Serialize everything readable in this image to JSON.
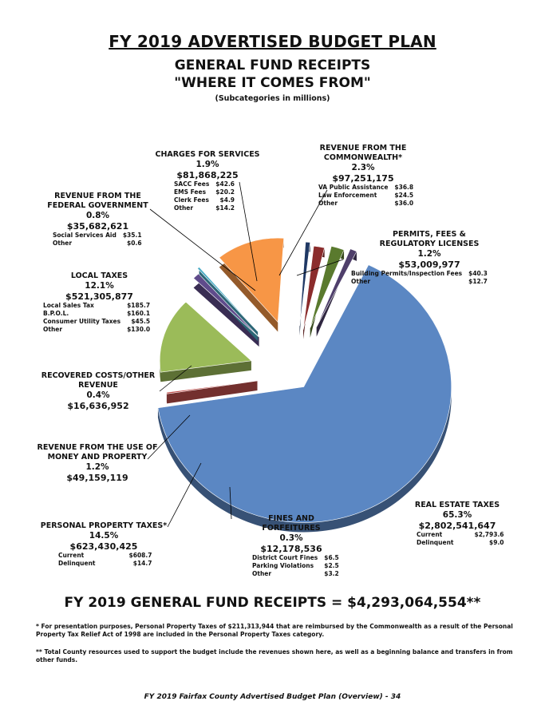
{
  "header": {
    "title": "FY 2019 ADVERTISED BUDGET PLAN",
    "subtitle1": "GENERAL FUND RECEIPTS",
    "subtitle2": "\"WHERE IT COMES FROM\"",
    "note": "(Subcategories in millions)"
  },
  "chart_data": {
    "type": "pie",
    "title": "FY 2019 ADVERTISED BUDGET PLAN",
    "slices": [
      {
        "name": "REAL ESTATE TAXES",
        "pct": 65.3,
        "pct_label": "65.3%",
        "amount": "$2,802,541,647",
        "color": "#5b87c3",
        "subs": [
          [
            "Current",
            "$2,793.6"
          ],
          [
            "Delinquent",
            "$9.0"
          ]
        ]
      },
      {
        "name": "FINES AND FORFEITURES",
        "pct": 0.3,
        "pct_label": "0.3%",
        "amount": "$12,178,536",
        "color": "#c0504d",
        "subs": [
          [
            "District Court Fines",
            "$6.5"
          ],
          [
            "Parking Violations",
            "$2.5"
          ],
          [
            "Other",
            "$3.2"
          ]
        ]
      },
      {
        "name": "PERSONAL PROPERTY TAXES*",
        "pct": 14.5,
        "pct_label": "14.5%",
        "amount": "$623,430,425",
        "color": "#9bbb59",
        "subs": [
          [
            "Current",
            "$608.7"
          ],
          [
            "Delinquent",
            "$14.7"
          ]
        ]
      },
      {
        "name": "REVENUE FROM THE USE OF MONEY AND PROPERTY",
        "pct": 1.2,
        "pct_label": "1.2%",
        "amount": "$49,159,119",
        "color": "#5f4b8b",
        "subs": []
      },
      {
        "name": "RECOVERED COSTS/OTHER REVENUE",
        "pct": 0.4,
        "pct_label": "0.4%",
        "amount": "$16,636,952",
        "color": "#4bacc6",
        "subs": []
      },
      {
        "name": "LOCAL TAXES",
        "pct": 12.1,
        "pct_label": "12.1%",
        "amount": "$521,305,877",
        "color": "#f79646",
        "subs": [
          [
            "Local Sales Tax",
            "$185.7"
          ],
          [
            "B.P.O.L.",
            "$160.1"
          ],
          [
            "Consumer Utility Taxes",
            "$45.5"
          ],
          [
            "Other",
            "$130.0"
          ]
        ]
      },
      {
        "name": "REVENUE FROM THE FEDERAL GOVERNMENT",
        "pct": 0.8,
        "pct_label": "0.8%",
        "amount": "$35,682,621",
        "color": "#1f3864",
        "subs": [
          [
            "Social Services Aid",
            "$35.1"
          ],
          [
            "Other",
            "$0.6"
          ]
        ]
      },
      {
        "name": "CHARGES FOR SERVICES",
        "pct": 1.9,
        "pct_label": "1.9%",
        "amount": "$81,868,225",
        "color": "#8b2c2c",
        "subs": [
          [
            "SACC Fees",
            "$42.6"
          ],
          [
            "EMS Fees",
            "$20.2"
          ],
          [
            "Clerk Fees",
            "$4.9"
          ],
          [
            "Other",
            "$14.2"
          ]
        ]
      },
      {
        "name": "REVENUE FROM THE COMMONWEALTH*",
        "pct": 2.3,
        "pct_label": "2.3%",
        "amount": "$97,251,175",
        "color": "#5a7a2e",
        "subs": [
          [
            "VA Public Assistance",
            "$36.8"
          ],
          [
            "Law Enforcement",
            "$24.5"
          ],
          [
            "Other",
            "$36.0"
          ]
        ]
      },
      {
        "name": "PERMITS, FEES & REGULATORY LICENSES",
        "pct": 1.2,
        "pct_label": "1.2%",
        "amount": "$53,009,977",
        "color": "#4f3f6b",
        "subs": [
          [
            "Building Permits/Inspection Fees",
            "$40.3"
          ],
          [
            "Other",
            "$12.7"
          ]
        ]
      }
    ]
  },
  "labels": {
    "real_estate": {
      "l1": "REAL ESTATE TAXES"
    },
    "fines": {
      "l1": "FINES AND FORFEITURES"
    },
    "personal": {
      "l1": "PERSONAL PROPERTY TAXES*"
    },
    "money": {
      "l1": "REVENUE FROM THE USE OF",
      "l2": "MONEY AND PROPERTY"
    },
    "recovered": {
      "l1": "RECOVERED COSTS/OTHER",
      "l2": "REVENUE"
    },
    "local": {
      "l1": "LOCAL TAXES"
    },
    "federal": {
      "l1": "REVENUE FROM THE",
      "l2": "FEDERAL GOVERNMENT"
    },
    "charges": {
      "l1": "CHARGES FOR SERVICES"
    },
    "commonwealth": {
      "l1": "REVENUE FROM THE",
      "l2": "COMMONWEALTH*"
    },
    "permits": {
      "l1": "PERMITS, FEES &",
      "l2": "REGULATORY LICENSES"
    }
  },
  "total": "FY 2019 GENERAL FUND RECEIPTS = $4,293,064,554**",
  "footnotes": {
    "f1": "* For presentation purposes, Personal Property Taxes of $211,313,944 that are reimbursed by the Commonwealth as a result of the Personal Property Tax Relief Act of 1998 are included in the Personal Property Taxes category.",
    "f2": "** Total County resources used to support the budget include the revenues shown here, as well as a beginning balance and transfers in from other funds."
  },
  "footer": "FY 2019 Fairfax County Advertised Budget Plan (Overview) - 34"
}
